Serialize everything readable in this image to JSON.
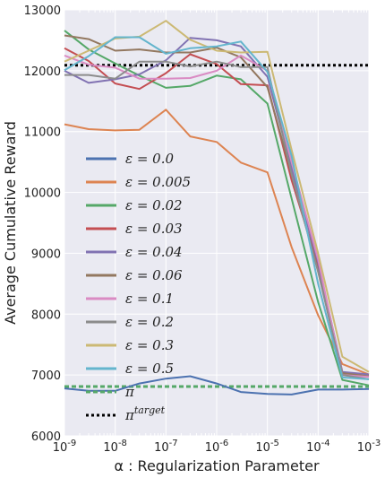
{
  "chart_data": {
    "type": "line",
    "x_scale": "log",
    "xlabel": "α : Regularization Parameter",
    "ylabel": "Average Cumulative Reward",
    "xlim": [
      1e-09,
      0.001
    ],
    "ylim": [
      6000,
      13000
    ],
    "grid": true,
    "legend_position": "lower-left",
    "x_ticks": [
      {
        "value": 1e-09,
        "base": "10",
        "exp": "-9"
      },
      {
        "value": 1e-08,
        "base": "10",
        "exp": "-8"
      },
      {
        "value": 1e-07,
        "base": "10",
        "exp": "-7"
      },
      {
        "value": 1e-06,
        "base": "10",
        "exp": "-6"
      },
      {
        "value": 1e-05,
        "base": "10",
        "exp": "-5"
      },
      {
        "value": 0.0001,
        "base": "10",
        "exp": "-4"
      },
      {
        "value": 0.001,
        "base": "10",
        "exp": "-3"
      }
    ],
    "y_ticks": [
      6000,
      7000,
      8000,
      9000,
      10000,
      11000,
      12000,
      13000
    ],
    "x": [
      1e-09,
      3e-09,
      1e-08,
      3e-08,
      1e-07,
      3e-07,
      1e-06,
      3e-06,
      1e-05,
      3e-05,
      0.0001,
      0.0003,
      0.001
    ],
    "series": [
      {
        "name": "ε = 0.0",
        "color": "#4c72b0",
        "values": [
          6780,
          6740,
          6740,
          6860,
          6940,
          6980,
          6860,
          6720,
          6690,
          6680,
          6760,
          6760,
          6770
        ]
      },
      {
        "name": "ε = 0.005",
        "color": "#dd8452",
        "values": [
          11120,
          11040,
          11020,
          11030,
          11360,
          10920,
          10830,
          10490,
          10330,
          9100,
          7980,
          7180,
          7010
        ]
      },
      {
        "name": "ε = 0.02",
        "color": "#55a868",
        "values": [
          12660,
          12350,
          12120,
          11920,
          11720,
          11750,
          11920,
          11860,
          11460,
          9900,
          8200,
          6920,
          6830
        ]
      },
      {
        "name": "ε = 0.03",
        "color": "#c44e52",
        "values": [
          12370,
          12160,
          11790,
          11700,
          11960,
          12270,
          12110,
          11780,
          11760,
          10200,
          8800,
          7000,
          6980
        ]
      },
      {
        "name": "ε = 0.04",
        "color": "#8172b2",
        "values": [
          12000,
          11800,
          11860,
          11940,
          12170,
          12540,
          12500,
          12400,
          11900,
          10400,
          8850,
          7050,
          7010
        ]
      },
      {
        "name": "ε = 0.06",
        "color": "#937860",
        "values": [
          12580,
          12520,
          12330,
          12350,
          12300,
          12300,
          12380,
          12220,
          11730,
          10300,
          8700,
          7030,
          6980
        ]
      },
      {
        "name": "ε = 0.1",
        "color": "#da8bc3",
        "values": [
          12250,
          12100,
          12050,
          11870,
          11870,
          11880,
          12000,
          12250,
          12000,
          10500,
          8900,
          7000,
          6970
        ]
      },
      {
        "name": "ε = 0.2",
        "color": "#8c8c8c",
        "values": [
          11930,
          11930,
          11870,
          12150,
          12150,
          12070,
          12150,
          12060,
          12060,
          10300,
          8700,
          7000,
          6930
        ]
      },
      {
        "name": "ε = 0.3",
        "color": "#ccb974",
        "values": [
          12150,
          12330,
          12530,
          12560,
          12820,
          12510,
          12330,
          12300,
          12310,
          10700,
          9000,
          7300,
          7050
        ]
      },
      {
        "name": "ε = 0.5",
        "color": "#64b5cd",
        "values": [
          12010,
          12240,
          12550,
          12550,
          12280,
          12370,
          12400,
          12480,
          11980,
          10600,
          8500,
          6960,
          6930
        ]
      }
    ],
    "reference_lines": [
      {
        "name": "π",
        "value": 6810,
        "color": "#55a868",
        "style": "dashed"
      },
      {
        "name": "π^target",
        "value": 12090,
        "color": "#000000",
        "style": "dotted"
      }
    ]
  }
}
